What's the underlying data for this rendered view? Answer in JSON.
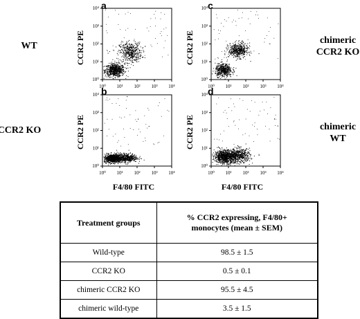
{
  "figure": {
    "panels": [
      {
        "letter": "a",
        "label_left": "WT",
        "label_right": "",
        "ylabel": "CCR2 PE",
        "xlabel": ""
      },
      {
        "letter": "b",
        "label_left": "CCR2 KO",
        "label_right": "",
        "ylabel": "CCR2 PE",
        "xlabel": "F4/80 FITC"
      },
      {
        "letter": "c",
        "label_left": "",
        "label_right": "chimeric CCR2 KO",
        "ylabel": "CCR2 PE",
        "xlabel": ""
      },
      {
        "letter": "d",
        "label_left": "",
        "label_right": "chimeric WT",
        "ylabel": "CCR2 PE",
        "xlabel": "F4/80 FITC"
      }
    ],
    "tick_labels": [
      "10⁰",
      "10¹",
      "10²",
      "10³",
      "10⁴"
    ]
  },
  "row_labels": {
    "wt": "WT",
    "ccr2ko": "CCR2 KO",
    "chim_ko_line1": "chimeric",
    "chim_ko_line2": "CCR2 KO",
    "chim_wt_line1": "chimeric",
    "chim_wt_line2": "WT"
  },
  "axis_labels": {
    "y": "CCR2 PE",
    "x": "F4/80 FITC"
  },
  "chart_data": [
    {
      "type": "scatter",
      "panel": "a",
      "xlabel": "",
      "ylabel": "CCR2 PE",
      "xscale": "log",
      "yscale": "log",
      "xlim": [
        1,
        10000
      ],
      "ylim": [
        1,
        10000
      ],
      "clusters": [
        {
          "cx": 5,
          "cy": 3.5,
          "n": 700,
          "sx": 0.28,
          "sy": 0.18
        },
        {
          "cx": 40,
          "cy": 35,
          "n": 450,
          "sx": 0.32,
          "sy": 0.28
        }
      ]
    },
    {
      "type": "scatter",
      "panel": "b",
      "xlabel": "F4/80 FITC",
      "ylabel": "CCR2 PE",
      "xscale": "log",
      "yscale": "log",
      "xlim": [
        1,
        10000
      ],
      "ylim": [
        1,
        10000
      ],
      "clusters": [
        {
          "cx": 4,
          "cy": 2.8,
          "n": 900,
          "sx": 0.26,
          "sy": 0.12
        },
        {
          "cx": 25,
          "cy": 3,
          "n": 450,
          "sx": 0.3,
          "sy": 0.12
        }
      ]
    },
    {
      "type": "scatter",
      "panel": "c",
      "xlabel": "",
      "ylabel": "CCR2 PE",
      "xscale": "log",
      "yscale": "log",
      "xlim": [
        1,
        10000
      ],
      "ylim": [
        1,
        10000
      ],
      "clusters": [
        {
          "cx": 5,
          "cy": 3.5,
          "n": 500,
          "sx": 0.24,
          "sy": 0.18
        },
        {
          "cx": 35,
          "cy": 45,
          "n": 500,
          "sx": 0.28,
          "sy": 0.2
        }
      ]
    },
    {
      "type": "scatter",
      "panel": "d",
      "xlabel": "F4/80 FITC",
      "ylabel": "CCR2 PE",
      "xscale": "log",
      "yscale": "log",
      "xlim": [
        1,
        10000
      ],
      "ylim": [
        1,
        10000
      ],
      "clusters": [
        {
          "cx": 6,
          "cy": 3.5,
          "n": 900,
          "sx": 0.3,
          "sy": 0.18
        },
        {
          "cx": 40,
          "cy": 4,
          "n": 500,
          "sx": 0.32,
          "sy": 0.2
        }
      ]
    }
  ],
  "table": {
    "header": {
      "col1": "Treatment groups",
      "col2_line1": "% CCR2 expressing, F4/80+",
      "col2_line2": "monocytes (mean ± SEM)"
    },
    "rows": [
      {
        "group": "Wild-type",
        "value": "98.5 ± 1.5"
      },
      {
        "group": "CCR2 KO",
        "value": "0.5 ± 0.1"
      },
      {
        "group": "chimeric CCR2 KO",
        "value": "95.5 ± 4.5"
      },
      {
        "group": "chimeric wild-type",
        "value": "3.5 ± 1.5"
      }
    ]
  }
}
